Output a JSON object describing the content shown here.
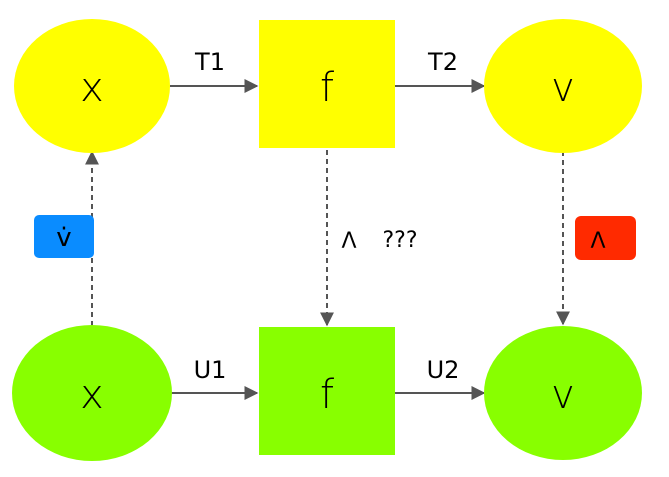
{
  "colors": {
    "top_row": "#ffff00",
    "bottom_row": "#88ff00",
    "arrow": "#555555",
    "badge_left": "#0a8cff",
    "badge_right": "#ff2a00",
    "text": "#000000"
  },
  "nodes": {
    "top_x": "x",
    "top_f": "f",
    "top_v": "v",
    "bottom_x": "x",
    "bottom_f": "f",
    "bottom_v": "v"
  },
  "edges": {
    "t1": "T1",
    "t2": "T2",
    "u1": "U1",
    "u2": "U2"
  },
  "labels": {
    "left_badge": "v̇",
    "right_badge": "Λ",
    "middle_lambda": "Λ",
    "middle_question": "???"
  }
}
